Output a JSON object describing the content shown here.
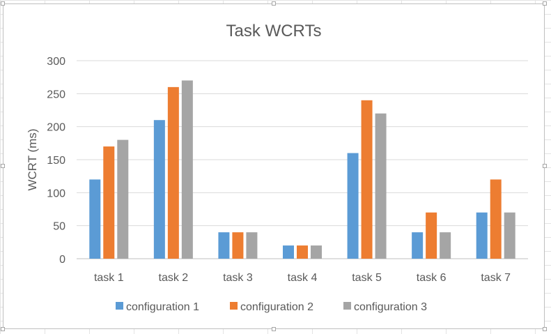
{
  "chart_data": {
    "type": "bar",
    "title": "Task WCRTs",
    "xlabel": "",
    "ylabel": "WCRT (ms)",
    "categories": [
      "task 1",
      "task 2",
      "task 3",
      "task 4",
      "task 5",
      "task 6",
      "task 7"
    ],
    "series": [
      {
        "name": "configuration 1",
        "color": "#5b9bd5",
        "values": [
          120,
          210,
          40,
          20,
          160,
          40,
          70
        ]
      },
      {
        "name": "configuration 2",
        "color": "#ed7d31",
        "values": [
          170,
          260,
          40,
          20,
          240,
          70,
          120
        ]
      },
      {
        "name": "configuration 3",
        "color": "#a5a5a5",
        "values": [
          180,
          270,
          40,
          20,
          220,
          40,
          70
        ]
      }
    ],
    "ylim": [
      0,
      300
    ],
    "yticks": [
      0,
      50,
      100,
      150,
      200,
      250,
      300
    ],
    "grid": true,
    "legend_position": "bottom"
  }
}
